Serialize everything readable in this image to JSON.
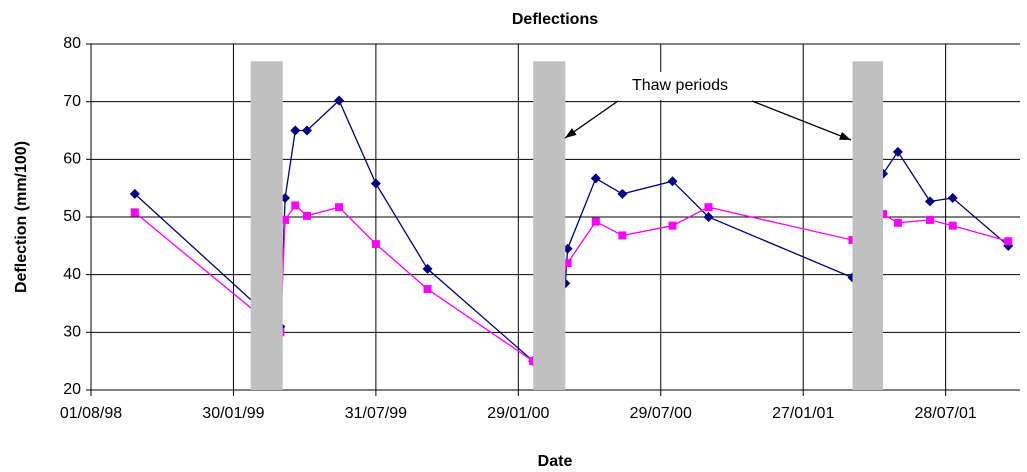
{
  "chart_data": {
    "type": "line",
    "title": "Deflections",
    "x_label": "Date",
    "y_label": "Deflection (mm/100)",
    "xlim": [
      "1998-08-01",
      "2001-10-31"
    ],
    "xticks": [
      {
        "value": "1998-08-01",
        "label": "01/08/98"
      },
      {
        "value": "1999-01-30",
        "label": "30/01/99"
      },
      {
        "value": "1999-07-31",
        "label": "31/07/99"
      },
      {
        "value": "2000-01-29",
        "label": "29/01/00"
      },
      {
        "value": "2000-07-29",
        "label": "29/07/00"
      },
      {
        "value": "2001-01-27",
        "label": "27/01/01"
      },
      {
        "value": "2001-07-28",
        "label": "28/07/01"
      }
    ],
    "ylim": [
      20,
      80
    ],
    "yticks": [
      20,
      30,
      40,
      50,
      60,
      70,
      80
    ],
    "grid": true,
    "series": [
      {
        "color": "#000080",
        "marker": "diamond",
        "x": [
          "1998-09-26",
          "1999-03-31",
          "1999-04-06",
          "1999-04-19",
          "1999-05-04",
          "1999-06-14",
          "1999-07-31",
          "1999-10-05",
          "2000-02-17",
          "2000-03-29",
          "2000-04-01",
          "2000-05-07",
          "2000-06-10",
          "2000-08-13",
          "2000-09-28",
          "2001-03-31",
          "2001-05-09",
          "2001-05-28",
          "2001-07-08",
          "2001-08-06",
          "2001-10-16"
        ],
        "values": [
          54,
          31,
          53.3,
          65,
          65,
          70.2,
          55.8,
          41,
          25,
          38.5,
          44.5,
          56.7,
          54,
          56.2,
          50,
          39.5,
          57.5,
          61.3,
          52.7,
          53.3,
          45
        ]
      },
      {
        "color": "#ff00ff",
        "marker": "square",
        "x": [
          "1998-09-26",
          "1999-03-31",
          "1999-04-06",
          "1999-04-19",
          "1999-05-04",
          "1999-06-14",
          "1999-07-31",
          "1999-10-05",
          "2000-02-17",
          "2000-04-01",
          "2000-05-07",
          "2000-06-10",
          "2000-08-13",
          "2000-09-28",
          "2001-03-31",
          "2001-05-09",
          "2001-05-28",
          "2001-07-08",
          "2001-08-06",
          "2001-10-16"
        ],
        "values": [
          50.8,
          30,
          49.5,
          52,
          50.2,
          51.7,
          45.3,
          37.5,
          25,
          42,
          49.2,
          46.8,
          48.5,
          51.7,
          46,
          50.5,
          49,
          49.5,
          48.5,
          45.8
        ]
      }
    ],
    "shaded_periods": [
      {
        "start": "1999-02-21",
        "end": "1999-04-03"
      },
      {
        "start": "2000-02-17",
        "end": "2000-03-29"
      },
      {
        "start": "2001-03-31",
        "end": "2001-05-09"
      }
    ],
    "shade_top": 77,
    "shade_color": "#c0c0c0",
    "annotation": "Thaw periods"
  }
}
